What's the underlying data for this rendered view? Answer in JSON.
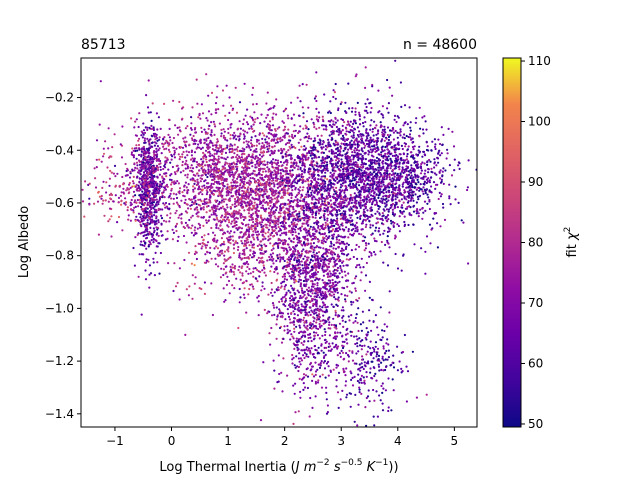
{
  "chart_data": {
    "type": "scatter",
    "title_left": "85713",
    "title_right": "n = 48600",
    "xlabel": "Log Thermal Inertia (J m^-2 s^-0.5 K^-1))",
    "ylabel": "Log Albedo",
    "xlim": [
      -1.6,
      5.4
    ],
    "ylim": [
      -1.45,
      -0.05
    ],
    "xticks": [
      -1,
      0,
      1,
      2,
      3,
      4,
      5
    ],
    "yticks": [
      -1.4,
      -1.2,
      -1.0,
      -0.8,
      -0.6,
      -0.4,
      -0.2
    ],
    "xtick_labels": [
      "−1",
      "0",
      "1",
      "2",
      "3",
      "4",
      "5"
    ],
    "ytick_labels": [
      "−1.4",
      "−1.2",
      "−1.0",
      "−0.8",
      "−0.6",
      "−0.4",
      "−0.2"
    ],
    "n_points": 48600,
    "colorbar": {
      "label": "fit χ²",
      "colormap": "plasma",
      "range": [
        49.5,
        110.5
      ],
      "ticks": [
        50,
        60,
        70,
        80,
        90,
        100,
        110
      ],
      "tick_labels": [
        "50",
        "60",
        "70",
        "80",
        "90",
        "100",
        "110"
      ]
    },
    "clusters": [
      {
        "center": [
          -0.4,
          -0.55
        ],
        "spread": [
          0.12,
          0.12
        ],
        "color_mean": 62
      },
      {
        "center": [
          1.2,
          -0.48
        ],
        "spread": [
          0.9,
          0.12
        ],
        "color_mean": 72
      },
      {
        "center": [
          1.6,
          -0.68
        ],
        "spread": [
          0.7,
          0.14
        ],
        "color_mean": 74
      },
      {
        "center": [
          3.3,
          -0.5
        ],
        "spread": [
          0.6,
          0.13
        ],
        "color_mean": 62
      },
      {
        "center": [
          2.5,
          -0.95
        ],
        "spread": [
          0.35,
          0.18
        ],
        "color_mean": 66
      },
      {
        "center": [
          3.5,
          -1.2
        ],
        "spread": [
          0.3,
          0.1
        ],
        "color_mean": 60
      },
      {
        "center": [
          4.2,
          -0.5
        ],
        "spread": [
          0.4,
          0.08
        ],
        "color_mean": 60
      },
      {
        "center": [
          -0.9,
          -0.55
        ],
        "spread": [
          0.3,
          0.08
        ],
        "color_mean": 76
      }
    ]
  }
}
